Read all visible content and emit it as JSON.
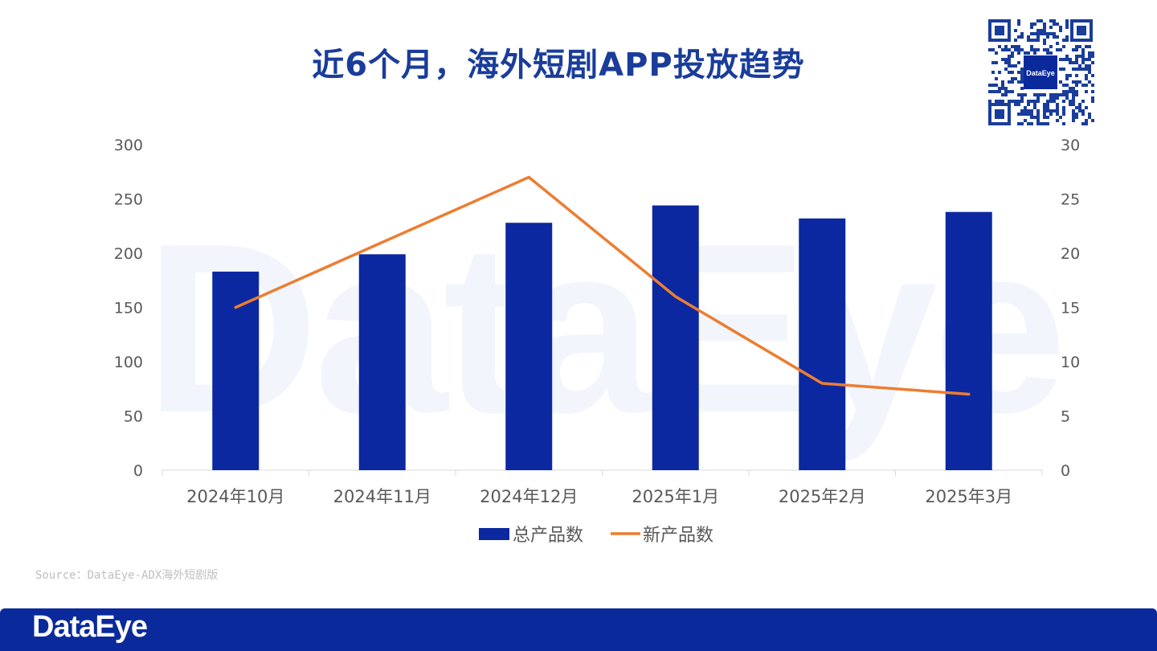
{
  "title": "近6个月，海外短剧APP投放趋势",
  "source": "Source：DataEye-ADX海外短剧版",
  "footer_brand": "DataEye",
  "qr_logo": "DataEye",
  "watermark": "DataEye",
  "colors": {
    "title": "#1a3d9b",
    "bar": "#0b28a0",
    "line": "#ed7d31",
    "footer": "#0a2a9c"
  },
  "chart_data": {
    "type": "bar+line",
    "categories": [
      "2024年10月",
      "2024年11月",
      "2024年12月",
      "2025年1月",
      "2025年2月",
      "2025年3月"
    ],
    "series": [
      {
        "name": "总产品数",
        "type": "bar",
        "axis": "left",
        "values": [
          183,
          199,
          228,
          244,
          232,
          238
        ]
      },
      {
        "name": "新产品数",
        "type": "line",
        "axis": "right",
        "values": [
          15,
          21,
          27,
          16,
          8,
          7
        ]
      }
    ],
    "y_left": {
      "min": 0,
      "max": 300,
      "ticks": [
        "0",
        "50",
        "100",
        "150",
        "200",
        "250",
        "300"
      ]
    },
    "y_right": {
      "min": 0,
      "max": 30,
      "ticks": [
        "0",
        "5",
        "10",
        "15",
        "20",
        "25",
        "30"
      ]
    },
    "legend_position": "bottom-center",
    "grid": false
  }
}
